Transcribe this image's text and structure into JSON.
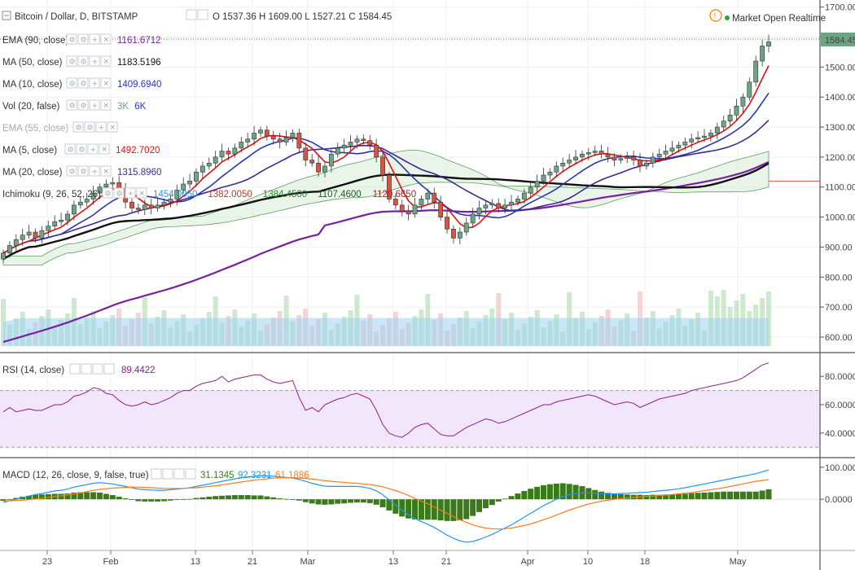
{
  "header": {
    "symbol": "Bitcoin / Dollar, D, BITSTAMP",
    "ohlc": {
      "o_label": "O",
      "o": "1537.36",
      "h_label": "H",
      "h": "1609.00",
      "l_label": "L",
      "l": "1527.21",
      "c_label": "C",
      "c": "1584.45"
    },
    "market_status": "Market Open Realtime",
    "last_price_tag": "1584.45"
  },
  "colors": {
    "up": "#6ba583",
    "down": "#d75442",
    "ema90": "#7b1fa2",
    "ma50": "#111111",
    "ma10": "#2a35b5",
    "ma5": "#e01010",
    "ma20": "#3c2a8f",
    "rsi": "#8e1f8e",
    "macd": "#2196f3",
    "signal": "#ff7a1a",
    "hist": "#3a7a1a"
  },
  "chart_data": [
    {
      "type": "candlestick",
      "title": "Bitcoin / Dollar, D, BITSTAMP",
      "ylim": [
        570,
        1710
      ],
      "y_ticks": [
        "1700.00",
        "1600.00",
        "1500.00",
        "1400.00",
        "1300.00",
        "1200.00",
        "1100.00",
        "1000.00",
        "900.00",
        "800.00",
        "700.00",
        "600.00"
      ],
      "x_ticks": [
        "23",
        "Feb",
        "13",
        "21",
        "Mar",
        "13",
        "21",
        "Apr",
        "10",
        "18",
        "May"
      ],
      "indicators": [
        {
          "name": "EMA (90, close)",
          "icon": "gear",
          "values": [
            "1161.6712"
          ]
        },
        {
          "name": "MA (50, close)",
          "values": [
            "1183.5196"
          ]
        },
        {
          "name": "MA (10, close)",
          "values": [
            "1409.6940"
          ]
        },
        {
          "name": "Vol (20, false)",
          "values": [
            "3K",
            "6K"
          ]
        },
        {
          "name": "EMA (55, close)",
          "values": []
        },
        {
          "name": "MA (5, close)",
          "values": [
            "1492.7020"
          ]
        },
        {
          "name": "MA (20, close)",
          "values": [
            "1315.8960"
          ]
        },
        {
          "name": "Ichimoku (9, 26, 52, 26)",
          "values": [
            "1454.0050",
            "1382.0050",
            "1384.4500",
            "1107.4600",
            "1120.6650"
          ]
        }
      ],
      "closes": [
        880,
        905,
        925,
        940,
        950,
        930,
        955,
        970,
        985,
        990,
        1010,
        1040,
        1050,
        1060,
        1080,
        1100,
        1110,
        1115,
        1090,
        1050,
        1030,
        1025,
        1040,
        1030,
        1040,
        1050,
        1060,
        1090,
        1110,
        1120,
        1150,
        1170,
        1180,
        1200,
        1220,
        1210,
        1230,
        1250,
        1260,
        1280,
        1290,
        1270,
        1260,
        1250,
        1265,
        1280,
        1230,
        1190,
        1180,
        1150,
        1170,
        1210,
        1230,
        1240,
        1250,
        1260,
        1255,
        1240,
        1200,
        1140,
        1060,
        1040,
        1020,
        1010,
        1040,
        1060,
        1080,
        1050,
        1000,
        960,
        930,
        950,
        980,
        1010,
        1030,
        1040,
        1045,
        1030,
        1040,
        1050,
        1060,
        1080,
        1100,
        1120,
        1140,
        1150,
        1170,
        1180,
        1190,
        1200,
        1210,
        1215,
        1220,
        1210,
        1200,
        1190,
        1195,
        1200,
        1190,
        1170,
        1180,
        1200,
        1210,
        1220,
        1230,
        1240,
        1250,
        1260,
        1265,
        1270,
        1280,
        1300,
        1320,
        1340,
        1370,
        1400,
        1450,
        1520,
        1570,
        1584
      ],
      "volume_scale_max": 6000
    },
    {
      "type": "line",
      "title": "RSI (14, close)",
      "value_label": "89.4422",
      "ylim": [
        25,
        95
      ],
      "y_ticks": [
        "80.0000",
        "60.0000",
        "40.0000"
      ],
      "bands": [
        70,
        30
      ],
      "values": [
        55,
        58,
        55,
        56,
        57,
        56,
        56,
        58,
        60,
        60,
        62,
        66,
        67,
        69,
        72,
        71,
        68,
        67,
        63,
        60,
        59,
        60,
        62,
        60,
        61,
        63,
        65,
        68,
        70,
        70,
        73,
        75,
        76,
        77,
        80,
        76,
        78,
        79,
        80,
        81,
        81,
        78,
        76,
        75,
        76,
        77,
        65,
        56,
        58,
        55,
        60,
        62,
        64,
        65,
        67,
        68,
        66,
        64,
        56,
        46,
        40,
        38,
        37,
        40,
        44,
        46,
        47,
        43,
        39,
        38,
        38,
        41,
        44,
        46,
        48,
        50,
        49,
        47,
        48,
        50,
        52,
        54,
        56,
        58,
        60,
        60,
        62,
        63,
        64,
        65,
        66,
        67,
        66,
        64,
        62,
        60,
        61,
        62,
        61,
        58,
        60,
        62,
        64,
        65,
        66,
        67,
        68,
        70,
        71,
        72,
        73,
        74,
        75,
        76,
        77,
        79,
        82,
        85,
        88,
        89.4422
      ]
    },
    {
      "type": "line",
      "title": "MACD (12, 26, close, 9, false, true)",
      "value_labels": [
        "31.1345",
        "92.3231",
        "61.1886"
      ],
      "ylim": [
        -160,
        120
      ],
      "y_ticks": [
        "100.0000",
        "0.0000"
      ],
      "series": [
        {
          "name": "MACD",
          "values": [
            -10,
            -5,
            0,
            5,
            10,
            15,
            18,
            22,
            26,
            28,
            32,
            38,
            42,
            46,
            50,
            52,
            50,
            48,
            44,
            40,
            36,
            32,
            30,
            29,
            28,
            28,
            30,
            32,
            34,
            36,
            40,
            44,
            48,
            52,
            56,
            60,
            64,
            67,
            70,
            72,
            74,
            73,
            72,
            70,
            68,
            66,
            62,
            56,
            50,
            45,
            41,
            40,
            40,
            40,
            40,
            40,
            38,
            34,
            26,
            14,
            -2,
            -18,
            -34,
            -48,
            -60,
            -70,
            -78,
            -88,
            -100,
            -112,
            -122,
            -130,
            -134,
            -132,
            -126,
            -118,
            -110,
            -100,
            -90,
            -80,
            -68,
            -56,
            -44,
            -32,
            -20,
            -10,
            0,
            8,
            14,
            18,
            20,
            20,
            19,
            18,
            17,
            17,
            18,
            19,
            20,
            21,
            22,
            24,
            26,
            28,
            30,
            33,
            36,
            40,
            44,
            48,
            52,
            56,
            60,
            64,
            68,
            72,
            76,
            80,
            86,
            92.3231
          ]
        },
        {
          "name": "Signal",
          "values": [
            -5,
            -5,
            -4,
            -3,
            -1,
            1,
            3,
            6,
            9,
            11,
            14,
            17,
            20,
            24,
            28,
            31,
            33,
            35,
            36,
            37,
            38,
            38,
            37,
            36,
            35,
            34,
            34,
            34,
            34,
            35,
            36,
            38,
            40,
            42,
            45,
            48,
            51,
            54,
            57,
            60,
            62,
            64,
            66,
            67,
            67,
            67,
            66,
            65,
            63,
            61,
            58,
            56,
            54,
            53,
            51,
            50,
            48,
            46,
            43,
            39,
            33,
            27,
            20,
            12,
            3,
            -6,
            -14,
            -24,
            -34,
            -44,
            -54,
            -64,
            -72,
            -80,
            -86,
            -90,
            -92,
            -93,
            -92,
            -90,
            -86,
            -82,
            -77,
            -71,
            -64,
            -57,
            -49,
            -42,
            -34,
            -27,
            -21,
            -15,
            -10,
            -6,
            -3,
            0,
            2,
            4,
            6,
            7,
            9,
            10,
            12,
            13,
            15,
            17,
            19,
            21,
            24,
            27,
            30,
            33,
            36,
            40,
            44,
            48,
            52,
            56,
            59,
            61.1886
          ]
        }
      ]
    }
  ]
}
